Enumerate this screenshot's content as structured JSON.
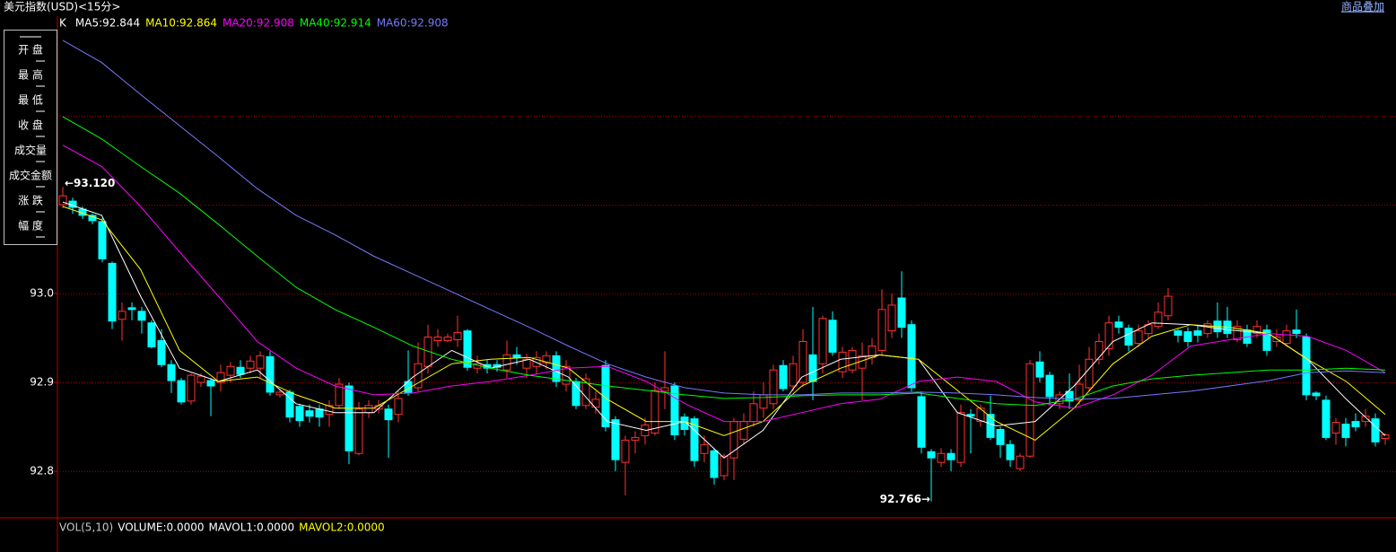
{
  "header": {
    "title": "美元指数(USD)<15分>",
    "link": "商品叠加"
  },
  "menu": [
    "开 盘",
    "最 高",
    "最 低",
    "收 盘",
    "成交量",
    "成交金额",
    "涨 跌",
    "幅 度"
  ],
  "volume_panel": [
    {
      "text": "VOL(5,10)",
      "color": "#c8c8c8"
    },
    {
      "text": "VOLUME:0.0000",
      "color": "#ffffff"
    },
    {
      "text": "MAVOL1:0.0000",
      "color": "#ffffff"
    },
    {
      "text": "MAVOL2:0.0000",
      "color": "#ffff00"
    }
  ],
  "chart_data": {
    "type": "candlestick",
    "legend_prefix": "K",
    "up_color": "#ff3232",
    "down_color": "#00ffff",
    "ylim": [
      92.7475,
      93.3122
    ],
    "yticks": [
      {
        "value": 93,
        "label": "93.0"
      },
      {
        "value": 92.9,
        "label": "92.9"
      },
      {
        "value": 92.8,
        "label": "92.8"
      }
    ],
    "ygrid": [
      93.2,
      93.1,
      93,
      92.9,
      92.8
    ],
    "annotations": {
      "max": "←93.120",
      "min": "92.766→"
    },
    "candles": [
      {
        "o": 93.1,
        "h": 93.12,
        "l": 93.096,
        "c": 93.11
      },
      {
        "o": 93.104,
        "h": 93.108,
        "l": 93.09,
        "c": 93.097
      },
      {
        "o": 93.095,
        "h": 93.098,
        "l": 93.084,
        "c": 93.088
      },
      {
        "o": 93.088,
        "h": 93.09,
        "l": 93.078,
        "c": 93.082
      },
      {
        "o": 93.081,
        "h": 93.085,
        "l": 93.035,
        "c": 93.039
      },
      {
        "o": 93.034,
        "h": 93.036,
        "l": 92.96,
        "c": 92.969
      },
      {
        "o": 92.971,
        "h": 92.99,
        "l": 92.947,
        "c": 92.98
      },
      {
        "o": 92.984,
        "h": 92.99,
        "l": 92.97,
        "c": 92.982
      },
      {
        "o": 92.98,
        "h": 92.985,
        "l": 92.955,
        "c": 92.97
      },
      {
        "o": 92.967,
        "h": 92.97,
        "l": 92.938,
        "c": 92.94
      },
      {
        "o": 92.947,
        "h": 92.96,
        "l": 92.917,
        "c": 92.92
      },
      {
        "o": 92.92,
        "h": 92.925,
        "l": 92.888,
        "c": 92.902
      },
      {
        "o": 92.902,
        "h": 92.905,
        "l": 92.875,
        "c": 92.878
      },
      {
        "o": 92.879,
        "h": 92.91,
        "l": 92.875,
        "c": 92.908
      },
      {
        "o": 92.9,
        "h": 92.91,
        "l": 92.895,
        "c": 92.907
      },
      {
        "o": 92.902,
        "h": 92.905,
        "l": 92.862,
        "c": 92.896
      },
      {
        "o": 92.9,
        "h": 92.92,
        "l": 92.89,
        "c": 92.911
      },
      {
        "o": 92.908,
        "h": 92.923,
        "l": 92.9,
        "c": 92.918
      },
      {
        "o": 92.917,
        "h": 92.925,
        "l": 92.905,
        "c": 92.909
      },
      {
        "o": 92.916,
        "h": 92.93,
        "l": 92.91,
        "c": 92.924
      },
      {
        "o": 92.916,
        "h": 92.935,
        "l": 92.905,
        "c": 92.93
      },
      {
        "o": 92.929,
        "h": 92.935,
        "l": 92.885,
        "c": 92.889
      },
      {
        "o": 92.886,
        "h": 92.892,
        "l": 92.883,
        "c": 92.889
      },
      {
        "o": 92.889,
        "h": 92.892,
        "l": 92.855,
        "c": 92.861
      },
      {
        "o": 92.873,
        "h": 92.876,
        "l": 92.85,
        "c": 92.857
      },
      {
        "o": 92.868,
        "h": 92.875,
        "l": 92.855,
        "c": 92.862
      },
      {
        "o": 92.87,
        "h": 92.875,
        "l": 92.85,
        "c": 92.861
      },
      {
        "o": 92.864,
        "h": 92.88,
        "l": 92.85,
        "c": 92.874
      },
      {
        "o": 92.874,
        "h": 92.905,
        "l": 92.87,
        "c": 92.898
      },
      {
        "o": 92.896,
        "h": 92.9,
        "l": 92.808,
        "c": 92.823
      },
      {
        "o": 92.82,
        "h": 92.878,
        "l": 92.818,
        "c": 92.87
      },
      {
        "o": 92.866,
        "h": 92.88,
        "l": 92.86,
        "c": 92.874
      },
      {
        "o": 92.87,
        "h": 92.88,
        "l": 92.865,
        "c": 92.874
      },
      {
        "o": 92.87,
        "h": 92.875,
        "l": 92.815,
        "c": 92.858
      },
      {
        "o": 92.864,
        "h": 92.89,
        "l": 92.855,
        "c": 92.882
      },
      {
        "o": 92.901,
        "h": 92.936,
        "l": 92.885,
        "c": 92.888
      },
      {
        "o": 92.894,
        "h": 92.945,
        "l": 92.89,
        "c": 92.921
      },
      {
        "o": 92.918,
        "h": 92.965,
        "l": 92.91,
        "c": 92.951
      },
      {
        "o": 92.947,
        "h": 92.96,
        "l": 92.94,
        "c": 92.951
      },
      {
        "o": 92.947,
        "h": 92.955,
        "l": 92.945,
        "c": 92.951
      },
      {
        "o": 92.948,
        "h": 92.975,
        "l": 92.94,
        "c": 92.956
      },
      {
        "o": 92.958,
        "h": 92.96,
        "l": 92.913,
        "c": 92.917
      },
      {
        "o": 92.916,
        "h": 92.93,
        "l": 92.91,
        "c": 92.921
      },
      {
        "o": 92.92,
        "h": 92.925,
        "l": 92.91,
        "c": 92.916
      },
      {
        "o": 92.92,
        "h": 92.925,
        "l": 92.912,
        "c": 92.917
      },
      {
        "o": 92.914,
        "h": 92.947,
        "l": 92.905,
        "c": 92.931
      },
      {
        "o": 92.931,
        "h": 92.94,
        "l": 92.92,
        "c": 92.928
      },
      {
        "o": 92.916,
        "h": 92.932,
        "l": 92.905,
        "c": 92.926
      },
      {
        "o": 92.918,
        "h": 92.935,
        "l": 92.91,
        "c": 92.928
      },
      {
        "o": 92.922,
        "h": 92.935,
        "l": 92.915,
        "c": 92.93
      },
      {
        "o": 92.93,
        "h": 92.935,
        "l": 92.895,
        "c": 92.901
      },
      {
        "o": 92.898,
        "h": 92.925,
        "l": 92.89,
        "c": 92.918
      },
      {
        "o": 92.901,
        "h": 92.905,
        "l": 92.87,
        "c": 92.874
      },
      {
        "o": 92.874,
        "h": 92.91,
        "l": 92.87,
        "c": 92.904
      },
      {
        "o": 92.872,
        "h": 92.89,
        "l": 92.865,
        "c": 92.881
      },
      {
        "o": 92.919,
        "h": 92.925,
        "l": 92.845,
        "c": 92.85
      },
      {
        "o": 92.858,
        "h": 92.862,
        "l": 92.8,
        "c": 92.813
      },
      {
        "o": 92.81,
        "h": 92.84,
        "l": 92.773,
        "c": 92.835
      },
      {
        "o": 92.835,
        "h": 92.845,
        "l": 92.82,
        "c": 92.838
      },
      {
        "o": 92.84,
        "h": 92.86,
        "l": 92.83,
        "c": 92.852
      },
      {
        "o": 92.843,
        "h": 92.9,
        "l": 92.84,
        "c": 92.891
      },
      {
        "o": 92.89,
        "h": 92.935,
        "l": 92.87,
        "c": 92.894
      },
      {
        "o": 92.896,
        "h": 92.9,
        "l": 92.835,
        "c": 92.841
      },
      {
        "o": 92.861,
        "h": 92.865,
        "l": 92.84,
        "c": 92.847
      },
      {
        "o": 92.859,
        "h": 92.862,
        "l": 92.805,
        "c": 92.812
      },
      {
        "o": 92.82,
        "h": 92.84,
        "l": 92.81,
        "c": 92.83
      },
      {
        "o": 92.823,
        "h": 92.826,
        "l": 92.785,
        "c": 92.793
      },
      {
        "o": 92.795,
        "h": 92.82,
        "l": 92.79,
        "c": 92.817
      },
      {
        "o": 92.815,
        "h": 92.86,
        "l": 92.79,
        "c": 92.856
      },
      {
        "o": 92.836,
        "h": 92.865,
        "l": 92.83,
        "c": 92.856
      },
      {
        "o": 92.856,
        "h": 92.89,
        "l": 92.85,
        "c": 92.876
      },
      {
        "o": 92.871,
        "h": 92.9,
        "l": 92.86,
        "c": 92.886
      },
      {
        "o": 92.876,
        "h": 92.92,
        "l": 92.87,
        "c": 92.914
      },
      {
        "o": 92.919,
        "h": 92.925,
        "l": 92.89,
        "c": 92.893
      },
      {
        "o": 92.896,
        "h": 92.93,
        "l": 92.89,
        "c": 92.921
      },
      {
        "o": 92.9,
        "h": 92.96,
        "l": 92.895,
        "c": 92.946
      },
      {
        "o": 92.931,
        "h": 92.985,
        "l": 92.88,
        "c": 92.901
      },
      {
        "o": 92.921,
        "h": 92.975,
        "l": 92.91,
        "c": 92.972
      },
      {
        "o": 92.97,
        "h": 92.98,
        "l": 92.93,
        "c": 92.934
      },
      {
        "o": 92.912,
        "h": 92.94,
        "l": 92.905,
        "c": 92.934
      },
      {
        "o": 92.914,
        "h": 92.94,
        "l": 92.91,
        "c": 92.936
      },
      {
        "o": 92.916,
        "h": 92.945,
        "l": 92.88,
        "c": 92.93
      },
      {
        "o": 92.928,
        "h": 92.95,
        "l": 92.92,
        "c": 92.941
      },
      {
        "o": 92.936,
        "h": 93.005,
        "l": 92.93,
        "c": 92.982
      },
      {
        "o": 92.958,
        "h": 93.0,
        "l": 92.95,
        "c": 92.987
      },
      {
        "o": 92.995,
        "h": 93.025,
        "l": 92.95,
        "c": 92.962
      },
      {
        "o": 92.965,
        "h": 92.97,
        "l": 92.89,
        "c": 92.894
      },
      {
        "o": 92.884,
        "h": 92.89,
        "l": 92.82,
        "c": 92.827
      },
      {
        "o": 92.822,
        "h": 92.825,
        "l": 92.766,
        "c": 92.815
      },
      {
        "o": 92.81,
        "h": 92.826,
        "l": 92.805,
        "c": 92.82
      },
      {
        "o": 92.82,
        "h": 92.825,
        "l": 92.8,
        "c": 92.813
      },
      {
        "o": 92.81,
        "h": 92.875,
        "l": 92.805,
        "c": 92.866
      },
      {
        "o": 92.864,
        "h": 92.87,
        "l": 92.82,
        "c": 92.862
      },
      {
        "o": 92.856,
        "h": 92.875,
        "l": 92.85,
        "c": 92.871
      },
      {
        "o": 92.864,
        "h": 92.885,
        "l": 92.835,
        "c": 92.838
      },
      {
        "o": 92.847,
        "h": 92.85,
        "l": 92.815,
        "c": 92.83
      },
      {
        "o": 92.83,
        "h": 92.835,
        "l": 92.805,
        "c": 92.813
      },
      {
        "o": 92.803,
        "h": 92.82,
        "l": 92.8,
        "c": 92.817
      },
      {
        "o": 92.817,
        "h": 92.925,
        "l": 92.815,
        "c": 92.921
      },
      {
        "o": 92.923,
        "h": 92.935,
        "l": 92.9,
        "c": 92.906
      },
      {
        "o": 92.908,
        "h": 92.912,
        "l": 92.875,
        "c": 92.884
      },
      {
        "o": 92.876,
        "h": 92.89,
        "l": 92.87,
        "c": 92.886
      },
      {
        "o": 92.89,
        "h": 92.91,
        "l": 92.87,
        "c": 92.879
      },
      {
        "o": 92.88,
        "h": 92.92,
        "l": 92.875,
        "c": 92.898
      },
      {
        "o": 92.894,
        "h": 92.94,
        "l": 92.89,
        "c": 92.926
      },
      {
        "o": 92.926,
        "h": 92.955,
        "l": 92.92,
        "c": 92.946
      },
      {
        "o": 92.938,
        "h": 92.975,
        "l": 92.93,
        "c": 92.967
      },
      {
        "o": 92.968,
        "h": 92.975,
        "l": 92.955,
        "c": 92.962
      },
      {
        "o": 92.961,
        "h": 92.965,
        "l": 92.935,
        "c": 92.942
      },
      {
        "o": 92.944,
        "h": 92.965,
        "l": 92.94,
        "c": 92.958
      },
      {
        "o": 92.955,
        "h": 92.97,
        "l": 92.95,
        "c": 92.965
      },
      {
        "o": 92.963,
        "h": 92.99,
        "l": 92.96,
        "c": 92.979
      },
      {
        "o": 92.975,
        "h": 93.006,
        "l": 92.97,
        "c": 92.997
      },
      {
        "o": 92.958,
        "h": 92.96,
        "l": 92.945,
        "c": 92.953
      },
      {
        "o": 92.957,
        "h": 92.962,
        "l": 92.94,
        "c": 92.946
      },
      {
        "o": 92.958,
        "h": 92.965,
        "l": 92.945,
        "c": 92.953
      },
      {
        "o": 92.955,
        "h": 92.97,
        "l": 92.95,
        "c": 92.966
      },
      {
        "o": 92.969,
        "h": 92.99,
        "l": 92.95,
        "c": 92.957
      },
      {
        "o": 92.969,
        "h": 92.985,
        "l": 92.95,
        "c": 92.955
      },
      {
        "o": 92.948,
        "h": 92.97,
        "l": 92.945,
        "c": 92.963
      },
      {
        "o": 92.959,
        "h": 92.965,
        "l": 92.94,
        "c": 92.944
      },
      {
        "o": 92.955,
        "h": 92.97,
        "l": 92.95,
        "c": 92.963
      },
      {
        "o": 92.959,
        "h": 92.965,
        "l": 92.93,
        "c": 92.936
      },
      {
        "o": 92.946,
        "h": 92.96,
        "l": 92.94,
        "c": 92.951
      },
      {
        "o": 92.944,
        "h": 92.965,
        "l": 92.94,
        "c": 92.958
      },
      {
        "o": 92.959,
        "h": 92.982,
        "l": 92.95,
        "c": 92.955
      },
      {
        "o": 92.951,
        "h": 92.955,
        "l": 92.88,
        "c": 92.886
      },
      {
        "o": 92.888,
        "h": 92.89,
        "l": 92.88,
        "c": 92.885
      },
      {
        "o": 92.88,
        "h": 92.885,
        "l": 92.835,
        "c": 92.838
      },
      {
        "o": 92.843,
        "h": 92.86,
        "l": 92.83,
        "c": 92.855
      },
      {
        "o": 92.853,
        "h": 92.86,
        "l": 92.828,
        "c": 92.838
      },
      {
        "o": 92.856,
        "h": 92.865,
        "l": 92.845,
        "c": 92.85
      },
      {
        "o": 92.856,
        "h": 92.87,
        "l": 92.85,
        "c": 92.862
      },
      {
        "o": 92.859,
        "h": 92.865,
        "l": 92.828,
        "c": 92.833
      },
      {
        "o": 92.837,
        "h": 92.843,
        "l": 92.83,
        "c": 92.841
      }
    ],
    "series": [
      {
        "name": "MA5:92.844",
        "color": "#ffffff",
        "values": [
          93.103,
          93.088,
          92.997,
          92.916,
          92.901,
          92.914,
          92.876,
          92.866,
          92.866,
          92.906,
          92.936,
          92.916,
          92.926,
          92.906,
          92.856,
          92.846,
          92.856,
          92.815,
          92.846,
          92.906,
          92.926,
          92.931,
          92.926,
          92.866,
          92.851,
          92.856,
          92.896,
          92.946,
          92.967,
          92.965,
          92.959,
          92.955,
          92.926,
          92.881,
          92.84
        ]
      },
      {
        "name": "MA10:92.864",
        "color": "#ffff00",
        "values": [
          93.098,
          93.083,
          93.027,
          92.936,
          92.901,
          92.906,
          92.886,
          92.871,
          92.871,
          92.896,
          92.921,
          92.926,
          92.928,
          92.916,
          92.881,
          92.856,
          92.856,
          92.84,
          92.856,
          92.896,
          92.916,
          92.931,
          92.926,
          92.891,
          92.856,
          92.835,
          92.871,
          92.921,
          92.952,
          92.965,
          92.962,
          92.955,
          92.926,
          92.901,
          92.864
        ]
      },
      {
        "name": "MA20:92.908",
        "color": "#ff00ff",
        "values": [
          93.167,
          93.143,
          93.098,
          93.047,
          92.997,
          92.946,
          92.916,
          92.896,
          92.886,
          92.888,
          92.896,
          92.901,
          92.908,
          92.916,
          92.918,
          92.901,
          92.876,
          92.856,
          92.856,
          92.866,
          92.876,
          92.881,
          92.901,
          92.906,
          92.901,
          92.878,
          92.871,
          92.886,
          92.908,
          92.941,
          92.948,
          92.955,
          92.952,
          92.936,
          92.911
        ]
      },
      {
        "name": "MA40:92.914",
        "color": "#00ff00",
        "values": [
          93.199,
          93.174,
          93.143,
          93.113,
          93.078,
          93.042,
          93.007,
          92.982,
          92.962,
          92.941,
          92.926,
          92.916,
          92.908,
          92.902,
          92.896,
          92.891,
          92.886,
          92.882,
          92.883,
          92.885,
          92.886,
          92.886,
          92.888,
          92.882,
          92.876,
          92.874,
          92.881,
          92.896,
          92.904,
          92.908,
          92.911,
          92.914,
          92.914,
          92.916,
          92.914
        ]
      },
      {
        "name": "MA60:92.908",
        "color": "#7878ff",
        "values": [
          93.285,
          93.26,
          93.224,
          93.189,
          93.154,
          93.118,
          93.088,
          93.066,
          93.042,
          93.022,
          93.002,
          92.982,
          92.962,
          92.941,
          92.921,
          92.906,
          92.894,
          92.888,
          92.886,
          92.886,
          92.888,
          92.888,
          92.889,
          92.888,
          92.886,
          92.883,
          92.881,
          92.882,
          92.886,
          92.89,
          92.896,
          92.902,
          92.911,
          92.913,
          92.911
        ]
      }
    ]
  }
}
